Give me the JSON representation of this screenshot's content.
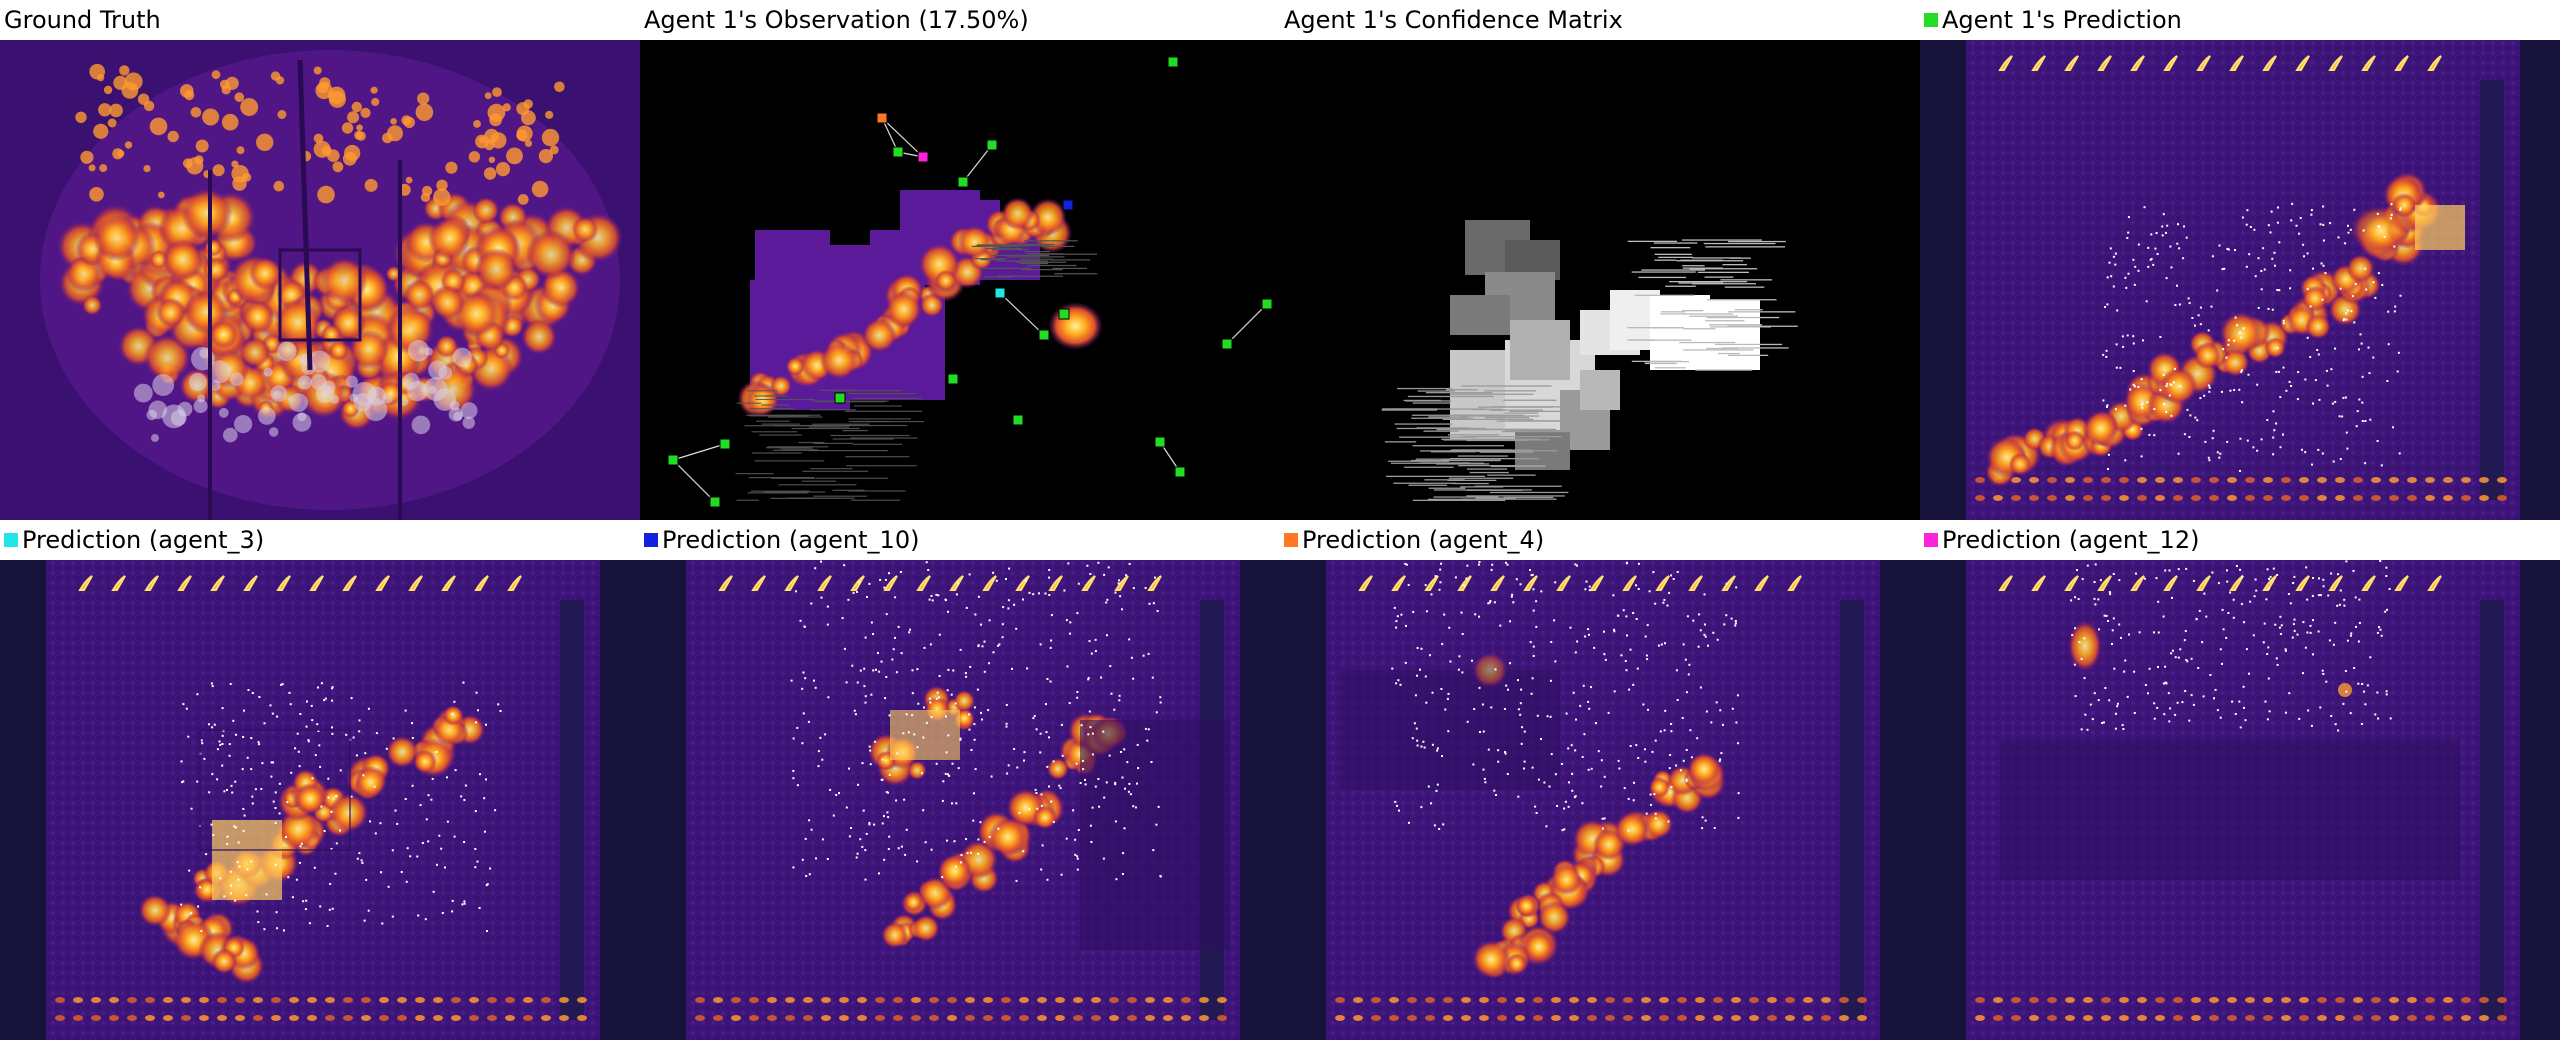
{
  "panels": [
    {
      "id": "ground_truth",
      "title": "Ground Truth",
      "marker_color": null,
      "kind": "heatmap"
    },
    {
      "id": "observation",
      "title": "Agent 1's Observation (17.50%)",
      "marker_color": null,
      "kind": "observation"
    },
    {
      "id": "confidence",
      "title": "Agent 1's Confidence Matrix",
      "marker_color": null,
      "kind": "confidence"
    },
    {
      "id": "agent1_prediction",
      "title": "Agent 1's Prediction",
      "marker_color": "#22dd22",
      "kind": "prediction"
    },
    {
      "id": "agent3_prediction",
      "title": "Prediction (agent_3)",
      "marker_color": "#22e5e5",
      "kind": "prediction"
    },
    {
      "id": "agent10_prediction",
      "title": "Prediction (agent_10)",
      "marker_color": "#1122dd",
      "kind": "prediction"
    },
    {
      "id": "agent4_prediction",
      "title": "Prediction (agent_4)",
      "marker_color": "#ff7722",
      "kind": "prediction"
    },
    {
      "id": "agent12_prediction",
      "title": "Prediction (agent_12)",
      "marker_color": "#ff22dd",
      "kind": "prediction"
    }
  ],
  "colors": {
    "colormap": "inferno",
    "background_dark": "#2a0a55",
    "hot": "#ffb020",
    "peak": "#fff2a0",
    "observation_bg": "#000000",
    "agent_markers": {
      "agent_1": "#22dd22",
      "agent_3": "#22e5e5",
      "agent_10": "#1122dd",
      "agent_4": "#ff7722",
      "agent_12": "#ff22dd"
    }
  }
}
